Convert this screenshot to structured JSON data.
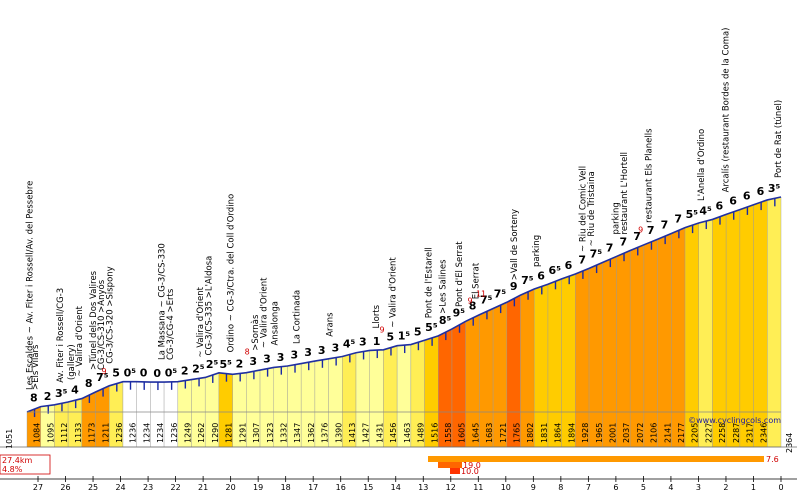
{
  "chart_data": {
    "type": "area",
    "title": "",
    "credit": "©www.cyclingcols.com",
    "summary": {
      "distance": "27.4km",
      "avg_gradient": "4.8%"
    },
    "start_altitude": "1051",
    "end_altitude": "2364",
    "km_ticks": [
      "27",
      "26",
      "25",
      "24",
      "23",
      "22",
      "21",
      "20",
      "19",
      "18",
      "17",
      "16",
      "15",
      "14",
      "13",
      "12",
      "11",
      "10",
      "9",
      "8",
      "7",
      "6",
      "5",
      "4",
      "3",
      "2",
      "1",
      "0"
    ],
    "altitudes": [
      "1084",
      "1095",
      "1112",
      "1133",
      "1173",
      "1211",
      "1236",
      "1236",
      "1234",
      "1234",
      "1236",
      "1249",
      "1262",
      "1290",
      "1281",
      "1291",
      "1307",
      "1323",
      "1332",
      "1347",
      "1362",
      "1376",
      "1390",
      "1413",
      "1427",
      "1431",
      "1456",
      "1463",
      "1489",
      "1516",
      "1558",
      "1605",
      "1645",
      "1683",
      "1721",
      "1765",
      "1802",
      "1831",
      "1864",
      "1894",
      "1928",
      "1965",
      "2001",
      "2037",
      "2072",
      "2106",
      "2141",
      "2177",
      "2205",
      "2227",
      "2258",
      "2287",
      "2317",
      "2346"
    ],
    "gradients": [
      "8",
      "2",
      "3⁵",
      "4",
      "8",
      "7⁵",
      "5",
      "0⁵",
      "0",
      "0",
      "0⁵",
      "2",
      "2⁵",
      "2⁵",
      "5⁵",
      "2",
      "3",
      "3",
      "3",
      "3",
      "3",
      "3",
      "3",
      "4⁵",
      "3",
      "1",
      "5",
      "1⁵",
      "5",
      "5⁵",
      "8⁵",
      "9⁵",
      "8",
      "7⁵",
      "7⁵",
      "9",
      "7⁵",
      "6",
      "6⁵",
      "6",
      "7",
      "7⁵",
      "7",
      "7",
      "7",
      "7",
      "7",
      "7",
      "5⁵",
      "4⁵",
      "6",
      "6",
      "6",
      "6",
      "3⁵"
    ],
    "legend_bars": [
      {
        "label": "7.6"
      },
      {
        "label": "19.0"
      },
      {
        "label": "10.0"
      }
    ],
    "annotations": [
      {
        "km": 27.2,
        "text": "Les Escaldes ~ Av. Fiter i Rossell/Av. del Pessebre"
      },
      {
        "km": 27.0,
        "text": ">Els Vilars"
      },
      {
        "km": 26.1,
        "text": "Av. Fiter i Rossell/CG-3"
      },
      {
        "km": 25.7,
        "text": "(gallery)"
      },
      {
        "km": 25.4,
        "text": "~ Valira d'Orient"
      },
      {
        "km": 24.9,
        "text": ">Túnel dels Dos Valires"
      },
      {
        "km": 24.6,
        "text": "CG-3/CS-310 >Anyós"
      },
      {
        "km": 24.3,
        "text": "CG-3/CS-320 >Sispony"
      },
      {
        "km": 22.4,
        "text": "La Massana ~ CG-3/CS-330"
      },
      {
        "km": 22.1,
        "text": "CG-3/CG-4 >Erts"
      },
      {
        "km": 21.0,
        "text": "~ Valira d'Orient"
      },
      {
        "km": 20.7,
        "text": "CG-3/CS-335 >L'Aldosa"
      },
      {
        "km": 19.9,
        "text": "Ordino ~ CG-3/Ctra. del Coll d'Ordino"
      },
      {
        "km": 19.0,
        "text": ">Sornàs"
      },
      {
        "km": 18.7,
        "text": "~ Valira d'Orient"
      },
      {
        "km": 18.3,
        "text": "Ansalonga"
      },
      {
        "km": 17.5,
        "text": "La Cortinada"
      },
      {
        "km": 16.3,
        "text": "Arans"
      },
      {
        "km": 14.6,
        "text": "Llorts"
      },
      {
        "km": 14.0,
        "text": "~ Valira d'Orient"
      },
      {
        "km": 12.7,
        "text": "Pont de l'Estarell"
      },
      {
        "km": 12.2,
        "text": ">Les Salines"
      },
      {
        "km": 11.6,
        "text": "Pont d'El Serrat"
      },
      {
        "km": 11.0,
        "text": "El Serrat"
      },
      {
        "km": 9.6,
        "text": ">Vall de Sorteny"
      },
      {
        "km": 8.8,
        "text": "parking"
      },
      {
        "km": 7.1,
        "text": "~ Riu del Comic Vell"
      },
      {
        "km": 6.8,
        "text": "~ Riu de Tristaina"
      },
      {
        "km": 5.9,
        "text": "parking"
      },
      {
        "km": 5.6,
        "text": "restaurant L'Hortell"
      },
      {
        "km": 4.7,
        "text": "restaurant Els Planells"
      },
      {
        "km": 2.8,
        "text": "L'Anella d'Ordino"
      },
      {
        "km": 1.9,
        "text": "Arcalís (restaurant Bordes de la Coma)"
      },
      {
        "km": 0.0,
        "text": "Port de Rat (túnel)"
      }
    ],
    "red_marks": [
      {
        "km": 24.6,
        "text": "9"
      },
      {
        "km": 19.4,
        "text": "8"
      },
      {
        "km": 14.5,
        "text": "9"
      },
      {
        "km": 11.3,
        "text": "9"
      },
      {
        "km": 10.9,
        "text": "11"
      },
      {
        "km": 5.1,
        "text": "9"
      }
    ]
  }
}
